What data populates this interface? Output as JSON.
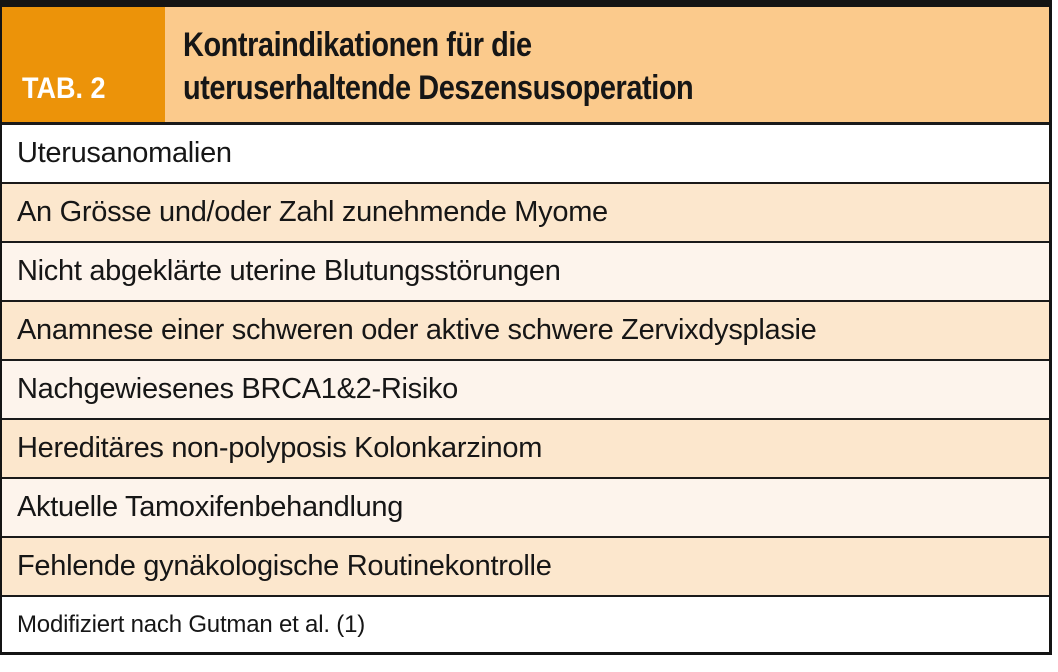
{
  "figure": {
    "tag_label": "TAB. 2",
    "title": {
      "line1": "Kontraindikationen für die",
      "line2": "uteruserhaltende Deszensusoperation"
    },
    "rows": [
      "Uterusanomalien",
      "An Grösse und/oder Zahl zunehmende Myome",
      "Nicht abgeklärte uterine Blutungsstörungen",
      "Anamnese einer schweren oder aktive schwere Zervixdysplasie",
      "Nachgewiesenes BRCA1&2-Risiko",
      "Hereditäres non-polyposis Kolonkarzinom",
      "Aktuelle Tamoxifenbehandlung",
      "Fehlende gynäkologische Routinekontrolle"
    ],
    "footer_note": "Modifiziert nach Gutman et al. (1)",
    "colors": {
      "tag_background": "#EC9309",
      "title_background": "#FBCA8C",
      "row_peach": "#FCE7CD",
      "row_cream": "#FDF4EC",
      "row_white": "#FFFFFF",
      "frame_border": "#141414",
      "tag_text": "#FFFFFF",
      "body_text": "#161616"
    }
  }
}
